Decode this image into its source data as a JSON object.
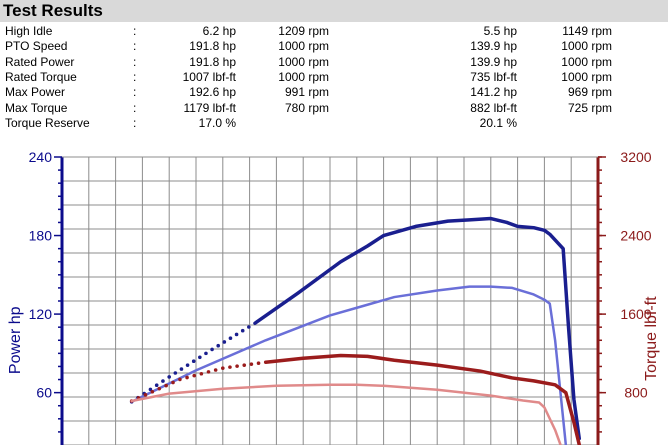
{
  "header": {
    "title": "Test Results"
  },
  "results": [
    {
      "label": "High Idle",
      "a_val": "6.2 hp",
      "a_rpm": "1209 rpm",
      "b_val": "5.5 hp",
      "b_rpm": "1149 rpm"
    },
    {
      "label": "PTO Speed",
      "a_val": "191.8 hp",
      "a_rpm": "1000 rpm",
      "b_val": "139.9 hp",
      "b_rpm": "1000 rpm"
    },
    {
      "label": "Rated Power",
      "a_val": "191.8 hp",
      "a_rpm": "1000 rpm",
      "b_val": "139.9 hp",
      "b_rpm": "1000 rpm"
    },
    {
      "label": "Rated Torque",
      "a_val": "1007 lbf-ft",
      "a_rpm": "1000 rpm",
      "b_val": "735 lbf-ft",
      "b_rpm": "1000 rpm"
    },
    {
      "label": "Max Power",
      "a_val": "192.6 hp",
      "a_rpm": "991 rpm",
      "b_val": "141.2 hp",
      "b_rpm": "969 rpm"
    },
    {
      "label": "Max Torque",
      "a_val": "1179 lbf-ft",
      "a_rpm": "780 rpm",
      "b_val": "882 lbf-ft",
      "b_rpm": "725 rpm"
    },
    {
      "label": "Torque Reserve",
      "a_val": "17.0 %",
      "a_rpm": "",
      "b_val": "20.1 %",
      "b_rpm": ""
    }
  ],
  "colon": ":",
  "chart_data": {
    "type": "line",
    "ylabel": "Power hp",
    "y2label": "Torque lbf-ft",
    "ylim": [
      20,
      240
    ],
    "y2lim": [
      267,
      3200
    ],
    "yticks": [
      60,
      120,
      180,
      240
    ],
    "y2ticks": [
      800,
      1600,
      2400,
      3200
    ],
    "xlim": [
      0,
      1
    ],
    "grid": true,
    "colors": {
      "power_axis": "#0b0b8c",
      "torque_axis": "#8b1a1a"
    },
    "series": [
      {
        "axis": "left",
        "color": "#1a1f8f",
        "style": "solid+dots",
        "width": 3.5,
        "points": [
          [
            0.13,
            53
          ],
          [
            0.2,
            72
          ],
          [
            0.28,
            93
          ],
          [
            0.36,
            113
          ],
          [
            0.44,
            136
          ],
          [
            0.52,
            160
          ],
          [
            0.57,
            172
          ],
          [
            0.6,
            180
          ],
          [
            0.66,
            187
          ],
          [
            0.72,
            191
          ],
          [
            0.76,
            192
          ],
          [
            0.8,
            193
          ],
          [
            0.83,
            190
          ],
          [
            0.85,
            187
          ],
          [
            0.88,
            186
          ],
          [
            0.9,
            184
          ],
          [
            0.91,
            181
          ],
          [
            0.935,
            170
          ],
          [
            0.945,
            110
          ],
          [
            0.955,
            55
          ],
          [
            0.965,
            25
          ]
        ]
      },
      {
        "axis": "left",
        "color": "#6a6fd8",
        "style": "solid",
        "width": 2.5,
        "points": [
          [
            0.13,
            53
          ],
          [
            0.25,
            77
          ],
          [
            0.38,
            100
          ],
          [
            0.5,
            119
          ],
          [
            0.56,
            126
          ],
          [
            0.62,
            133
          ],
          [
            0.7,
            138
          ],
          [
            0.76,
            141
          ],
          [
            0.8,
            141
          ],
          [
            0.84,
            140
          ],
          [
            0.88,
            135
          ],
          [
            0.9,
            131
          ],
          [
            0.91,
            128
          ],
          [
            0.92,
            100
          ],
          [
            0.93,
            60
          ],
          [
            0.94,
            20
          ]
        ]
      },
      {
        "axis": "right",
        "color": "#9b1c1c",
        "style": "solid+dots",
        "width": 3.5,
        "points": [
          [
            0.13,
            715
          ],
          [
            0.22,
            935
          ],
          [
            0.3,
            1050
          ],
          [
            0.38,
            1110
          ],
          [
            0.45,
            1150
          ],
          [
            0.52,
            1179
          ],
          [
            0.57,
            1170
          ],
          [
            0.62,
            1130
          ],
          [
            0.7,
            1080
          ],
          [
            0.78,
            1020
          ],
          [
            0.84,
            950
          ],
          [
            0.88,
            920
          ],
          [
            0.92,
            880
          ],
          [
            0.94,
            800
          ],
          [
            0.955,
            500
          ],
          [
            0.965,
            270
          ]
        ]
      },
      {
        "axis": "right",
        "color": "#e08a8a",
        "style": "solid",
        "width": 2.5,
        "points": [
          [
            0.13,
            715
          ],
          [
            0.2,
            790
          ],
          [
            0.3,
            840
          ],
          [
            0.4,
            870
          ],
          [
            0.5,
            880
          ],
          [
            0.55,
            880
          ],
          [
            0.6,
            870
          ],
          [
            0.7,
            830
          ],
          [
            0.8,
            770
          ],
          [
            0.86,
            720
          ],
          [
            0.89,
            700
          ],
          [
            0.9,
            650
          ],
          [
            0.92,
            420
          ],
          [
            0.93,
            270
          ]
        ]
      }
    ]
  }
}
